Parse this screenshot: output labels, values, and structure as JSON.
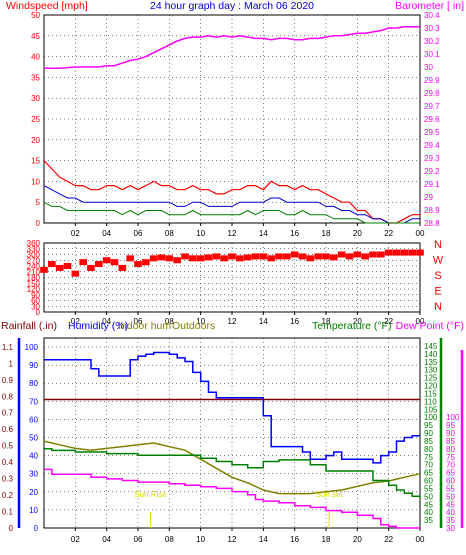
{
  "colors": {
    "wind": "#ff0000",
    "gust": "#ff0000",
    "avg_wind": "#0000cc",
    "wind_min": "#008000",
    "barometer": "#ff00ff",
    "direction": "#ff0000",
    "humidity_indoor": "#0000ff",
    "humidity_outdoor": "#808000",
    "temperature": "#008000",
    "dew_point": "#ff00ff",
    "rainfall": "#800000",
    "sun": "#dddd00",
    "grid": "#000000"
  },
  "chart_data": [
    {
      "type": "line",
      "title": "24 hour graph day : March 06 2020",
      "ylabel_left": "Windspeed [mph]",
      "ylabel_right": "Barometer [ in]",
      "ylim_left": [
        0,
        50
      ],
      "ylim_right": [
        28.8,
        30.4
      ],
      "yticks_left": [
        "0",
        "5",
        "10",
        "15",
        "20",
        "25",
        "30",
        "35",
        "40",
        "45",
        "50"
      ],
      "yticks_right": [
        "28.8",
        "28.9",
        "29",
        "29.1",
        "29.2",
        "29.3",
        "29.4",
        "29.5",
        "29.6",
        "29.7",
        "29.8",
        "29.9",
        "30",
        "30.1",
        "30.2",
        "30.3",
        "30.4"
      ],
      "x_range_hours": [
        0,
        24
      ],
      "x_ticks": [
        "02",
        "04",
        "06",
        "08",
        "10",
        "12",
        "14",
        "16",
        "18",
        "20",
        "22",
        "00"
      ],
      "series": [
        {
          "axis": "right",
          "x": [
            0,
            1,
            2,
            3,
            3.5,
            4,
            4.5,
            5,
            5.5,
            6,
            6.5,
            7,
            7.5,
            8,
            8.5,
            9,
            9.5,
            10,
            10.5,
            11,
            11.5,
            12,
            12.5,
            13,
            13.5,
            14,
            14.5,
            15,
            15.5,
            16,
            16.5,
            17,
            17.5,
            18,
            18.5,
            19,
            19.5,
            20,
            20.5,
            21,
            21.5,
            22,
            22.5,
            23,
            23.5,
            24
          ],
          "y": [
            29.99,
            29.99,
            30.0,
            30.0,
            30.0,
            30.01,
            30.01,
            30.03,
            30.05,
            30.06,
            30.08,
            30.11,
            30.14,
            30.17,
            30.2,
            30.22,
            30.23,
            30.23,
            30.24,
            30.23,
            30.24,
            30.23,
            30.24,
            30.23,
            30.22,
            30.22,
            30.21,
            30.22,
            30.22,
            30.21,
            30.21,
            30.22,
            30.22,
            30.23,
            30.24,
            30.24,
            30.25,
            30.26,
            30.26,
            30.27,
            30.28,
            30.3,
            30.3,
            30.31,
            30.31,
            30.31
          ]
        },
        {
          "axis": "left",
          "x": [
            0,
            0.5,
            1,
            1.5,
            2,
            2.5,
            3,
            3.5,
            4,
            4.5,
            5,
            5.5,
            6,
            6.5,
            7,
            7.5,
            8,
            8.5,
            9,
            9.5,
            10,
            10.5,
            11,
            11.5,
            12,
            12.5,
            13,
            13.5,
            14,
            14.5,
            15,
            15.5,
            16,
            16.5,
            17,
            17.5,
            18,
            18.5,
            19,
            19.5,
            20,
            20.5,
            21,
            21.5,
            22,
            22.5,
            23,
            23.5,
            24
          ],
          "y": [
            15,
            13,
            11,
            10,
            9,
            9,
            8,
            8,
            9,
            9,
            8,
            9,
            8,
            9,
            10,
            9,
            9,
            8,
            8,
            9,
            8,
            8,
            7,
            7,
            8,
            8,
            9,
            9,
            8,
            10,
            9,
            9,
            8,
            9,
            8,
            8,
            7,
            6,
            5,
            5,
            3,
            3,
            1,
            1,
            0,
            0,
            1,
            2,
            2
          ]
        },
        {
          "axis": "left",
          "x": [
            0,
            0.5,
            1,
            1.5,
            2,
            2.5,
            3,
            3.5,
            4,
            4.5,
            5,
            5.5,
            6,
            6.5,
            7,
            7.5,
            8,
            8.5,
            9,
            9.5,
            10,
            10.5,
            11,
            11.5,
            12,
            12.5,
            13,
            13.5,
            14,
            14.5,
            15,
            15.5,
            16,
            16.5,
            17,
            17.5,
            18,
            18.5,
            19,
            19.5,
            20,
            20.5,
            21,
            21.5,
            22,
            22.5,
            23,
            23.5,
            24
          ],
          "y": [
            9,
            8,
            7,
            6,
            6,
            5,
            5,
            5,
            5,
            5,
            5,
            5,
            5,
            5,
            5,
            5,
            5,
            4,
            4,
            5,
            5,
            4,
            4,
            4,
            4,
            5,
            5,
            5,
            5,
            6,
            6,
            5,
            5,
            5,
            5,
            5,
            4,
            4,
            3,
            3,
            2,
            2,
            1,
            1,
            0,
            0,
            0,
            1,
            1
          ]
        },
        {
          "axis": "left",
          "x": [
            0,
            0.5,
            1,
            1.5,
            2,
            2.5,
            3,
            3.5,
            4,
            4.5,
            5,
            5.5,
            6,
            6.5,
            7,
            7.5,
            8,
            8.5,
            9,
            9.5,
            10,
            10.5,
            11,
            11.5,
            12,
            12.5,
            13,
            13.5,
            14,
            14.5,
            15,
            15.5,
            16,
            16.5,
            17,
            17.5,
            18,
            18.5,
            19,
            19.5,
            20,
            20.5,
            21,
            21.5,
            22,
            22.5,
            23,
            23.5,
            24
          ],
          "y": [
            5,
            4,
            4,
            3,
            3,
            3,
            3,
            3,
            3,
            3,
            2,
            3,
            2,
            3,
            3,
            3,
            2,
            2,
            2,
            3,
            2,
            2,
            2,
            2,
            2,
            2,
            3,
            2,
            3,
            3,
            3,
            2,
            2,
            3,
            2,
            2,
            2,
            1,
            1,
            1,
            1,
            0,
            0,
            0,
            0,
            0,
            0,
            0,
            0
          ]
        }
      ]
    },
    {
      "type": "scatter",
      "ylabel_right": [
        "N",
        "W",
        "S",
        "E",
        "N"
      ],
      "ylim": [
        0,
        360
      ],
      "yticks": [
        "0",
        "30",
        "60",
        "90",
        "120",
        "150",
        "180",
        "210",
        "240",
        "270",
        "300",
        "330",
        "360"
      ],
      "x_ticks": [
        "02",
        "04",
        "06",
        "08",
        "10",
        "12",
        "14",
        "16",
        "18",
        "20",
        "22",
        "00"
      ],
      "x": [
        0,
        0.5,
        1,
        1.5,
        2,
        2.5,
        3,
        3.5,
        4,
        4.5,
        5,
        5.5,
        6,
        6.5,
        7,
        7.5,
        8,
        8.5,
        9,
        9.5,
        10,
        10.5,
        11,
        11.5,
        12,
        12.5,
        13,
        13.5,
        14,
        14.5,
        15,
        15.5,
        16,
        16.5,
        17,
        17.5,
        18,
        18.5,
        19,
        19.5,
        20,
        20.5,
        21,
        21.5,
        22,
        22.5,
        23,
        23.5,
        24
      ],
      "y": [
        220,
        250,
        230,
        240,
        200,
        260,
        230,
        250,
        270,
        260,
        230,
        280,
        250,
        260,
        280,
        285,
        280,
        270,
        290,
        280,
        280,
        285,
        290,
        280,
        290,
        280,
        285,
        290,
        290,
        280,
        290,
        290,
        300,
        290,
        280,
        290,
        290,
        285,
        300,
        290,
        300,
        290,
        300,
        300,
        310,
        310,
        310,
        310,
        310
      ]
    },
    {
      "type": "line",
      "ylabel_left_1": "Rainfall (.in)",
      "ylabel_left_2": "Humidity (%)",
      "legend_inline": [
        "Indoor hum",
        "Outdoors"
      ],
      "ylabel_right_1": "Temperature (°F)",
      "ylabel_right_2": "Dew Point (°F)",
      "yticks_rain": [
        "0",
        "0.1",
        "0.2",
        "0.3",
        "0.4",
        "0.5",
        "0.6",
        "0.7",
        "0.8",
        "0.9",
        "1",
        "1.1"
      ],
      "yticks_humidity": [
        "0",
        "10",
        "20",
        "30",
        "40",
        "50",
        "60",
        "70",
        "80",
        "90",
        "100"
      ],
      "yticks_temp": [
        "35",
        "40",
        "45",
        "50",
        "55",
        "60",
        "65",
        "70",
        "75",
        "80",
        "85",
        "90",
        "95",
        "100",
        "105",
        "110",
        "115",
        "120",
        "125",
        "130",
        "135",
        "140",
        "145"
      ],
      "yticks_dew": [
        "30",
        "35",
        "40",
        "45",
        "50",
        "55",
        "60",
        "65",
        "70",
        "75",
        "80",
        "85",
        "90",
        "95",
        "100"
      ],
      "ylim_pct": [
        0,
        100
      ],
      "ylim_temp": [
        30,
        150
      ],
      "x_ticks": [
        "02",
        "04",
        "06",
        "08",
        "10",
        "12",
        "14",
        "16",
        "18",
        "20",
        "22",
        "00"
      ],
      "annotations": [
        {
          "text": "Sun Rise",
          "x_hour": 6.8
        },
        {
          "text": "Sun set",
          "x_hour": 18.2
        }
      ],
      "series": [
        {
          "axis": "pct",
          "x": [
            0,
            0.5,
            1,
            1.5,
            2,
            2.5,
            3,
            3.5,
            4,
            4.5,
            5,
            5.5,
            6,
            6.5,
            7,
            7.5,
            8,
            8.5,
            9,
            9.5,
            10,
            10.5,
            11,
            11.5,
            12,
            12.5,
            13,
            13.5,
            14,
            14.5,
            15,
            15.5,
            16,
            16.5,
            17,
            17.5,
            18,
            18.5,
            19,
            19.5,
            20,
            20.5,
            21,
            21.5,
            22,
            22.5,
            23,
            23.5,
            24
          ],
          "y": [
            93,
            93,
            93,
            93,
            93,
            93,
            88,
            84,
            84,
            84,
            84,
            93,
            95,
            96,
            97,
            97,
            96,
            94,
            92,
            86,
            81,
            75,
            72,
            72,
            72,
            72,
            72,
            72,
            62,
            45,
            45,
            45,
            45,
            42,
            38,
            38,
            40,
            42,
            38,
            38,
            38,
            38,
            36,
            40,
            42,
            48,
            50,
            51,
            51
          ]
        },
        {
          "axis": "pct",
          "x": [
            0,
            1,
            2,
            3,
            4,
            5,
            6,
            7,
            8,
            9,
            10,
            11,
            12,
            13,
            14,
            15,
            16,
            17,
            18,
            19,
            20,
            21,
            22,
            23,
            24
          ],
          "y": [
            48,
            46,
            44,
            43,
            44,
            45,
            46,
            47,
            45,
            43,
            38,
            33,
            28,
            25,
            21,
            19,
            19,
            19,
            20,
            21,
            23,
            25,
            26,
            28,
            30
          ]
        },
        {
          "axis": "temp",
          "x": [
            0,
            0.5,
            1,
            2,
            3,
            4,
            5,
            6,
            7,
            8,
            9,
            10,
            11,
            12,
            13,
            13.5,
            14,
            15,
            16,
            17,
            18,
            19,
            20,
            21,
            22,
            22.5,
            23,
            23.5,
            24
          ],
          "y": [
            80,
            79,
            79,
            78,
            78,
            77,
            77,
            76,
            76,
            76,
            76,
            74,
            72,
            70,
            68,
            68,
            72,
            73,
            73,
            70,
            66,
            66,
            66,
            60,
            57,
            54,
            52,
            50,
            49
          ]
        },
        {
          "axis": "dew",
          "x": [
            0,
            0.5,
            1,
            2,
            3,
            4,
            5,
            6,
            7,
            8,
            9,
            10,
            11,
            12,
            13,
            13.5,
            14,
            15,
            16,
            17,
            18,
            19,
            20,
            21,
            21.5,
            22,
            22.5,
            23,
            23.5,
            24
          ],
          "y": [
            67,
            64,
            64,
            64,
            62,
            61,
            60,
            59,
            59,
            58,
            57,
            56,
            55,
            53,
            51,
            48,
            47,
            46,
            44,
            43,
            41,
            40,
            38,
            36,
            32,
            31,
            30,
            30,
            30,
            30
          ]
        },
        {
          "axis": "pct",
          "x": [
            0,
            24
          ],
          "y": [
            71,
            71
          ]
        }
      ]
    }
  ]
}
